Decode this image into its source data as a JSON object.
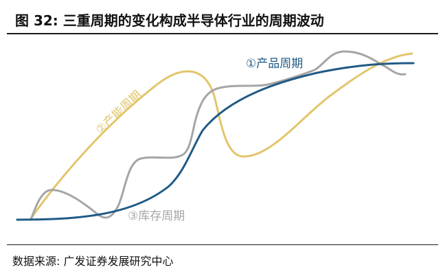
{
  "figure": {
    "title": "图 32:  三重周期的变化构成半导体行业的周期波动",
    "source": "数据来源:  广发证券发展研究中心"
  },
  "curves": [
    {
      "id": "product",
      "label": "①产品周期",
      "color": "#1f5a85"
    },
    {
      "id": "capacity",
      "label": "②产能周期",
      "color": "#e2c56b"
    },
    {
      "id": "inventory",
      "label": "③库存周期",
      "color": "#a5a5a5"
    }
  ]
}
